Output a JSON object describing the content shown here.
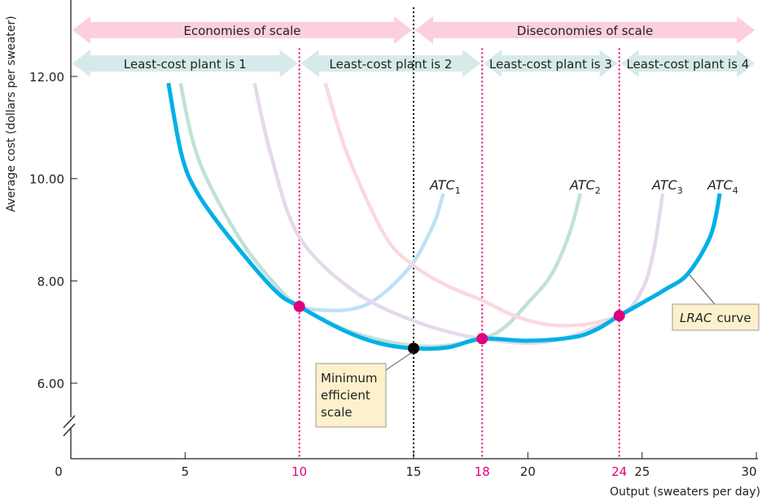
{
  "chart_data": {
    "type": "line",
    "xlabel": "Output (sweaters per day)",
    "ylabel": "Average cost (dollars per sweater)",
    "xlim": [
      0,
      30
    ],
    "ylim": [
      5,
      13
    ],
    "axis_break_y": true,
    "grid": false,
    "x_ticks": [
      {
        "value": 0,
        "label": "0",
        "highlight": false
      },
      {
        "value": 5,
        "label": "5",
        "highlight": false
      },
      {
        "value": 10,
        "label": "10",
        "highlight": true
      },
      {
        "value": 15,
        "label": "15",
        "highlight": false
      },
      {
        "value": 18,
        "label": "18",
        "highlight": true
      },
      {
        "value": 20,
        "label": "20",
        "highlight": false
      },
      {
        "value": 24,
        "label": "24",
        "highlight": true
      },
      {
        "value": 25,
        "label": "25",
        "highlight": false
      },
      {
        "value": 30,
        "label": "30",
        "highlight": false
      }
    ],
    "y_ticks": [
      {
        "value": 12,
        "label": "12.00"
      },
      {
        "value": 10,
        "label": "10.00"
      },
      {
        "value": 8,
        "label": "8.00"
      },
      {
        "value": 6,
        "label": "6.00"
      }
    ],
    "series": [
      {
        "name": "ATC1",
        "label_main": "ATC",
        "label_sub": "1",
        "color": "#bfe1f6",
        "points": [
          [
            4.27,
            11.87
          ],
          [
            4.84,
            10.48
          ],
          [
            5.5,
            9.75
          ],
          [
            6.87,
            8.89
          ],
          [
            8.9,
            7.83
          ],
          [
            10,
            7.5
          ],
          [
            11,
            7.43
          ],
          [
            12,
            7.43
          ],
          [
            13,
            7.55
          ],
          [
            14,
            7.88
          ],
          [
            15,
            8.37
          ],
          [
            15.6,
            8.85
          ],
          [
            16,
            9.25
          ],
          [
            16.3,
            9.71
          ]
        ]
      },
      {
        "name": "ATC2",
        "label_main": "ATC",
        "label_sub": "2",
        "color": "#c0e2d6",
        "points": [
          [
            4.8,
            11.87
          ],
          [
            5.3,
            10.8
          ],
          [
            6,
            9.95
          ],
          [
            7.5,
            8.75
          ],
          [
            9,
            7.9
          ],
          [
            10,
            7.5
          ],
          [
            12,
            7.05
          ],
          [
            14,
            6.8
          ],
          [
            16,
            6.72
          ],
          [
            18,
            6.87
          ],
          [
            19,
            7.1
          ],
          [
            20,
            7.57
          ],
          [
            21,
            8.1
          ],
          [
            21.8,
            8.9
          ],
          [
            22.3,
            9.71
          ]
        ]
      },
      {
        "name": "ATC3",
        "label_main": "ATC",
        "label_sub": "3",
        "color": "#e5d9ea",
        "points": [
          [
            8.04,
            11.87
          ],
          [
            8.75,
            10.48
          ],
          [
            9.96,
            8.89
          ],
          [
            12.3,
            7.83
          ],
          [
            15,
            7.22
          ],
          [
            18,
            6.87
          ],
          [
            21,
            6.82
          ],
          [
            24,
            7.32
          ],
          [
            25,
            7.83
          ],
          [
            25.5,
            8.57
          ],
          [
            25.9,
            9.71
          ]
        ]
      },
      {
        "name": "ATC4",
        "label_main": "ATC",
        "label_sub": "4",
        "color": "#fbd8e1",
        "points": [
          [
            11.14,
            11.87
          ],
          [
            12.1,
            10.48
          ],
          [
            13.74,
            8.89
          ],
          [
            15,
            8.3
          ],
          [
            16.5,
            7.9
          ],
          [
            18,
            7.62
          ],
          [
            19.5,
            7.3
          ],
          [
            21,
            7.14
          ],
          [
            22.5,
            7.15
          ],
          [
            24,
            7.32
          ],
          [
            25,
            7.57
          ],
          [
            26,
            7.83
          ],
          [
            27,
            8.14
          ],
          [
            28,
            8.89
          ],
          [
            28.4,
            9.71
          ]
        ]
      },
      {
        "name": "LRAC",
        "label_main": "LRAC",
        "label_rest": "curve",
        "color": "#00b0e6",
        "points": [
          [
            4.27,
            11.87
          ],
          [
            4.84,
            10.48
          ],
          [
            5.5,
            9.75
          ],
          [
            6.87,
            8.89
          ],
          [
            8.9,
            7.83
          ],
          [
            10,
            7.5
          ],
          [
            12,
            7.02
          ],
          [
            13.5,
            6.78
          ],
          [
            15,
            6.68
          ],
          [
            16.5,
            6.7
          ],
          [
            18,
            6.87
          ],
          [
            20,
            6.83
          ],
          [
            22,
            6.9
          ],
          [
            23,
            7.05
          ],
          [
            24,
            7.32
          ],
          [
            25,
            7.57
          ],
          [
            26,
            7.83
          ],
          [
            27,
            8.14
          ],
          [
            28,
            8.89
          ],
          [
            28.4,
            9.71
          ]
        ]
      }
    ],
    "marked_points": [
      {
        "x": 10,
        "y": 7.5,
        "color": "#e0007a"
      },
      {
        "x": 18,
        "y": 6.87,
        "color": "#e0007a"
      },
      {
        "x": 24,
        "y": 7.32,
        "color": "#e0007a"
      },
      {
        "x": 15,
        "y": 6.68,
        "color": "#000000"
      }
    ],
    "vertical_lines": [
      {
        "x": 10,
        "color": "#e0007a",
        "top": 12.55
      },
      {
        "x": 15,
        "color": "#000000",
        "top": 13.35
      },
      {
        "x": 18,
        "color": "#e0007a",
        "top": 12.55
      },
      {
        "x": 24,
        "color": "#e0007a",
        "top": 12.55
      }
    ],
    "scale_bands": [
      {
        "from": 0,
        "to": 15,
        "label": "Economies of scale",
        "color": "#fbd0dc"
      },
      {
        "from": 15,
        "to": 30,
        "label": "Diseconomies of scale",
        "color": "#fbd0dc"
      }
    ],
    "plant_bands": [
      {
        "from": 0,
        "to": 10,
        "label": "Least-cost plant is 1",
        "color": "#d6ebe9"
      },
      {
        "from": 10,
        "to": 18,
        "label": "Least-cost plant is 2",
        "color": "#d6ebe9"
      },
      {
        "from": 18,
        "to": 24,
        "label": "Least-cost plant is 3",
        "color": "#d6ebe9"
      },
      {
        "from": 24,
        "to": 30,
        "label": "Least-cost plant is 4",
        "color": "#d6ebe9"
      }
    ],
    "annotations": {
      "min_efficient_scale": [
        "Minimum",
        "efficient",
        "scale"
      ],
      "lrac_main": "LRAC",
      "lrac_rest": "curve"
    },
    "highlight_color": "#e0007a",
    "note_bg": "#fdf1cc"
  }
}
